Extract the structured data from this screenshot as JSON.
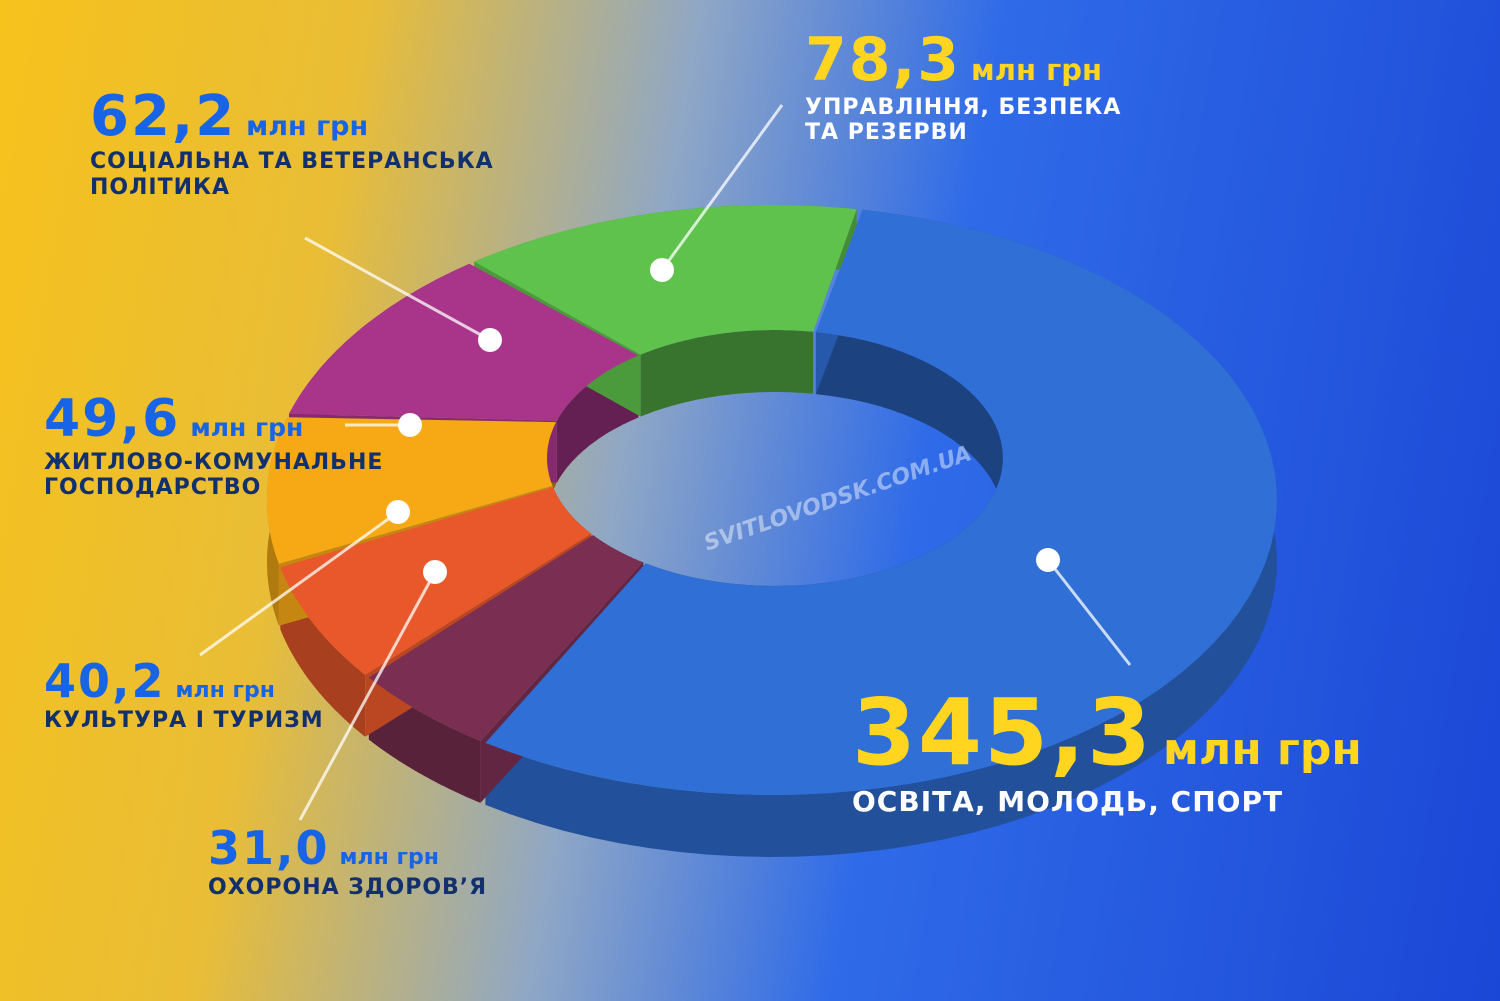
{
  "chart_data": {
    "type": "pie",
    "unit": "млн грн",
    "watermark": "SVITLOVODSK.COM.UA",
    "categories": [
      "ОСВІТА, МОЛОДЬ, СПОРТ",
      "ОХОРОНА ЗДОРОВ’Я",
      "КУЛЬТУРА І ТУРИЗМ",
      "ЖИТЛОВО-КОМУНАЛЬНЕ\nГОСПОДАРСТВО",
      "СОЦІАЛЬНА ТА ВЕТЕРАНСЬКА\nПОЛІТИКА",
      "УПРАВЛІННЯ, БЕЗПЕКА\nТА РЕЗЕРВИ"
    ],
    "values": [
      345.3,
      31.0,
      40.2,
      49.6,
      62.2,
      78.3
    ],
    "value_labels": [
      "345,3",
      "31,0",
      "40,2",
      "49,6",
      "62,2",
      "78,3"
    ],
    "colors": [
      "#2f6fd6",
      "#7a2f52",
      "#e9582b",
      "#f6a915",
      "#a8358a",
      "#5ec24c"
    ]
  }
}
